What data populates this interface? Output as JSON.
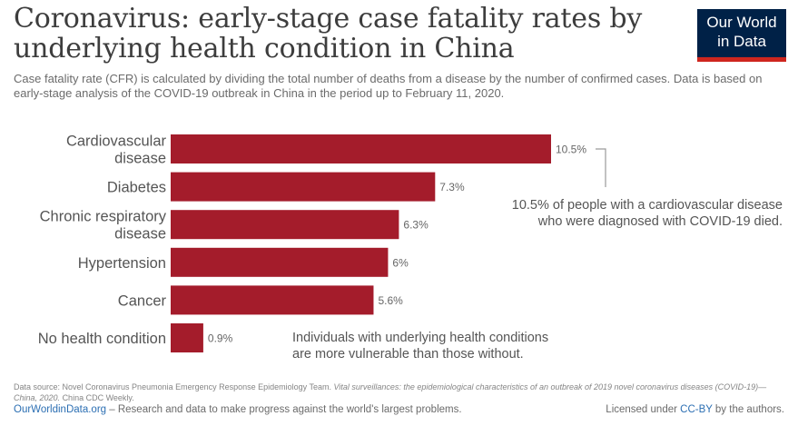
{
  "header": {
    "title": "Coronavirus: early-stage case fatality rates by underlying health condition in China",
    "subtitle": "Case fatality rate (CFR) is calculated by dividing the total number of deaths from a disease by the number of confirmed cases. Data is based on early-stage analysis of the COVID-19 outbreak in China in the period up to February 11, 2020.",
    "logo_line1": "Our World",
    "logo_line2": "in Data"
  },
  "colors": {
    "bar": "#a41c2b",
    "logo_bg": "#002147",
    "logo_accent": "#ce261e",
    "link": "#2c6fb3"
  },
  "chart_data": {
    "type": "bar",
    "orientation": "horizontal",
    "categories": [
      "Cardiovascular disease",
      "Diabetes",
      "Chronic respiratory disease",
      "Hypertension",
      "Cancer",
      "No health condition"
    ],
    "category_lines": [
      [
        "Cardiovascular",
        "disease"
      ],
      [
        "Diabetes"
      ],
      [
        "Chronic respiratory",
        "disease"
      ],
      [
        "Hypertension"
      ],
      [
        "Cancer"
      ],
      [
        "No health condition"
      ]
    ],
    "values": [
      10.5,
      7.3,
      6.3,
      6,
      5.6,
      0.9
    ],
    "value_labels": [
      "10.5%",
      "7.3%",
      "6.3%",
      "6%",
      "5.6%",
      "0.9%"
    ],
    "unit": "%",
    "xlim": [
      0,
      10.5
    ],
    "grid": false,
    "annotations": [
      {
        "lines": [
          "10.5% of people with a cardiovascular disease",
          "who were diagnosed with COVID-19 died."
        ]
      },
      {
        "lines": [
          "Individuals with underlying health conditions",
          "are more vulnerable than those without."
        ]
      }
    ]
  },
  "footer": {
    "source_prefix": "Data source: Novel Coronavirus Pneumonia Emergency Response Epidemiology Team.",
    "source_title": "Vital surveillances: the epidemiological characteristics of an outbreak of 2019 novel coronavirus diseases (COVID-19)—China, 2020.",
    "source_suffix": "China CDC Weekly.",
    "site_link": "OurWorldinData.org",
    "site_tagline": " – Research and data to make progress against the world's largest problems.",
    "license_prefix": "Licensed under ",
    "license_link": "CC-BY",
    "license_suffix": " by the authors."
  }
}
